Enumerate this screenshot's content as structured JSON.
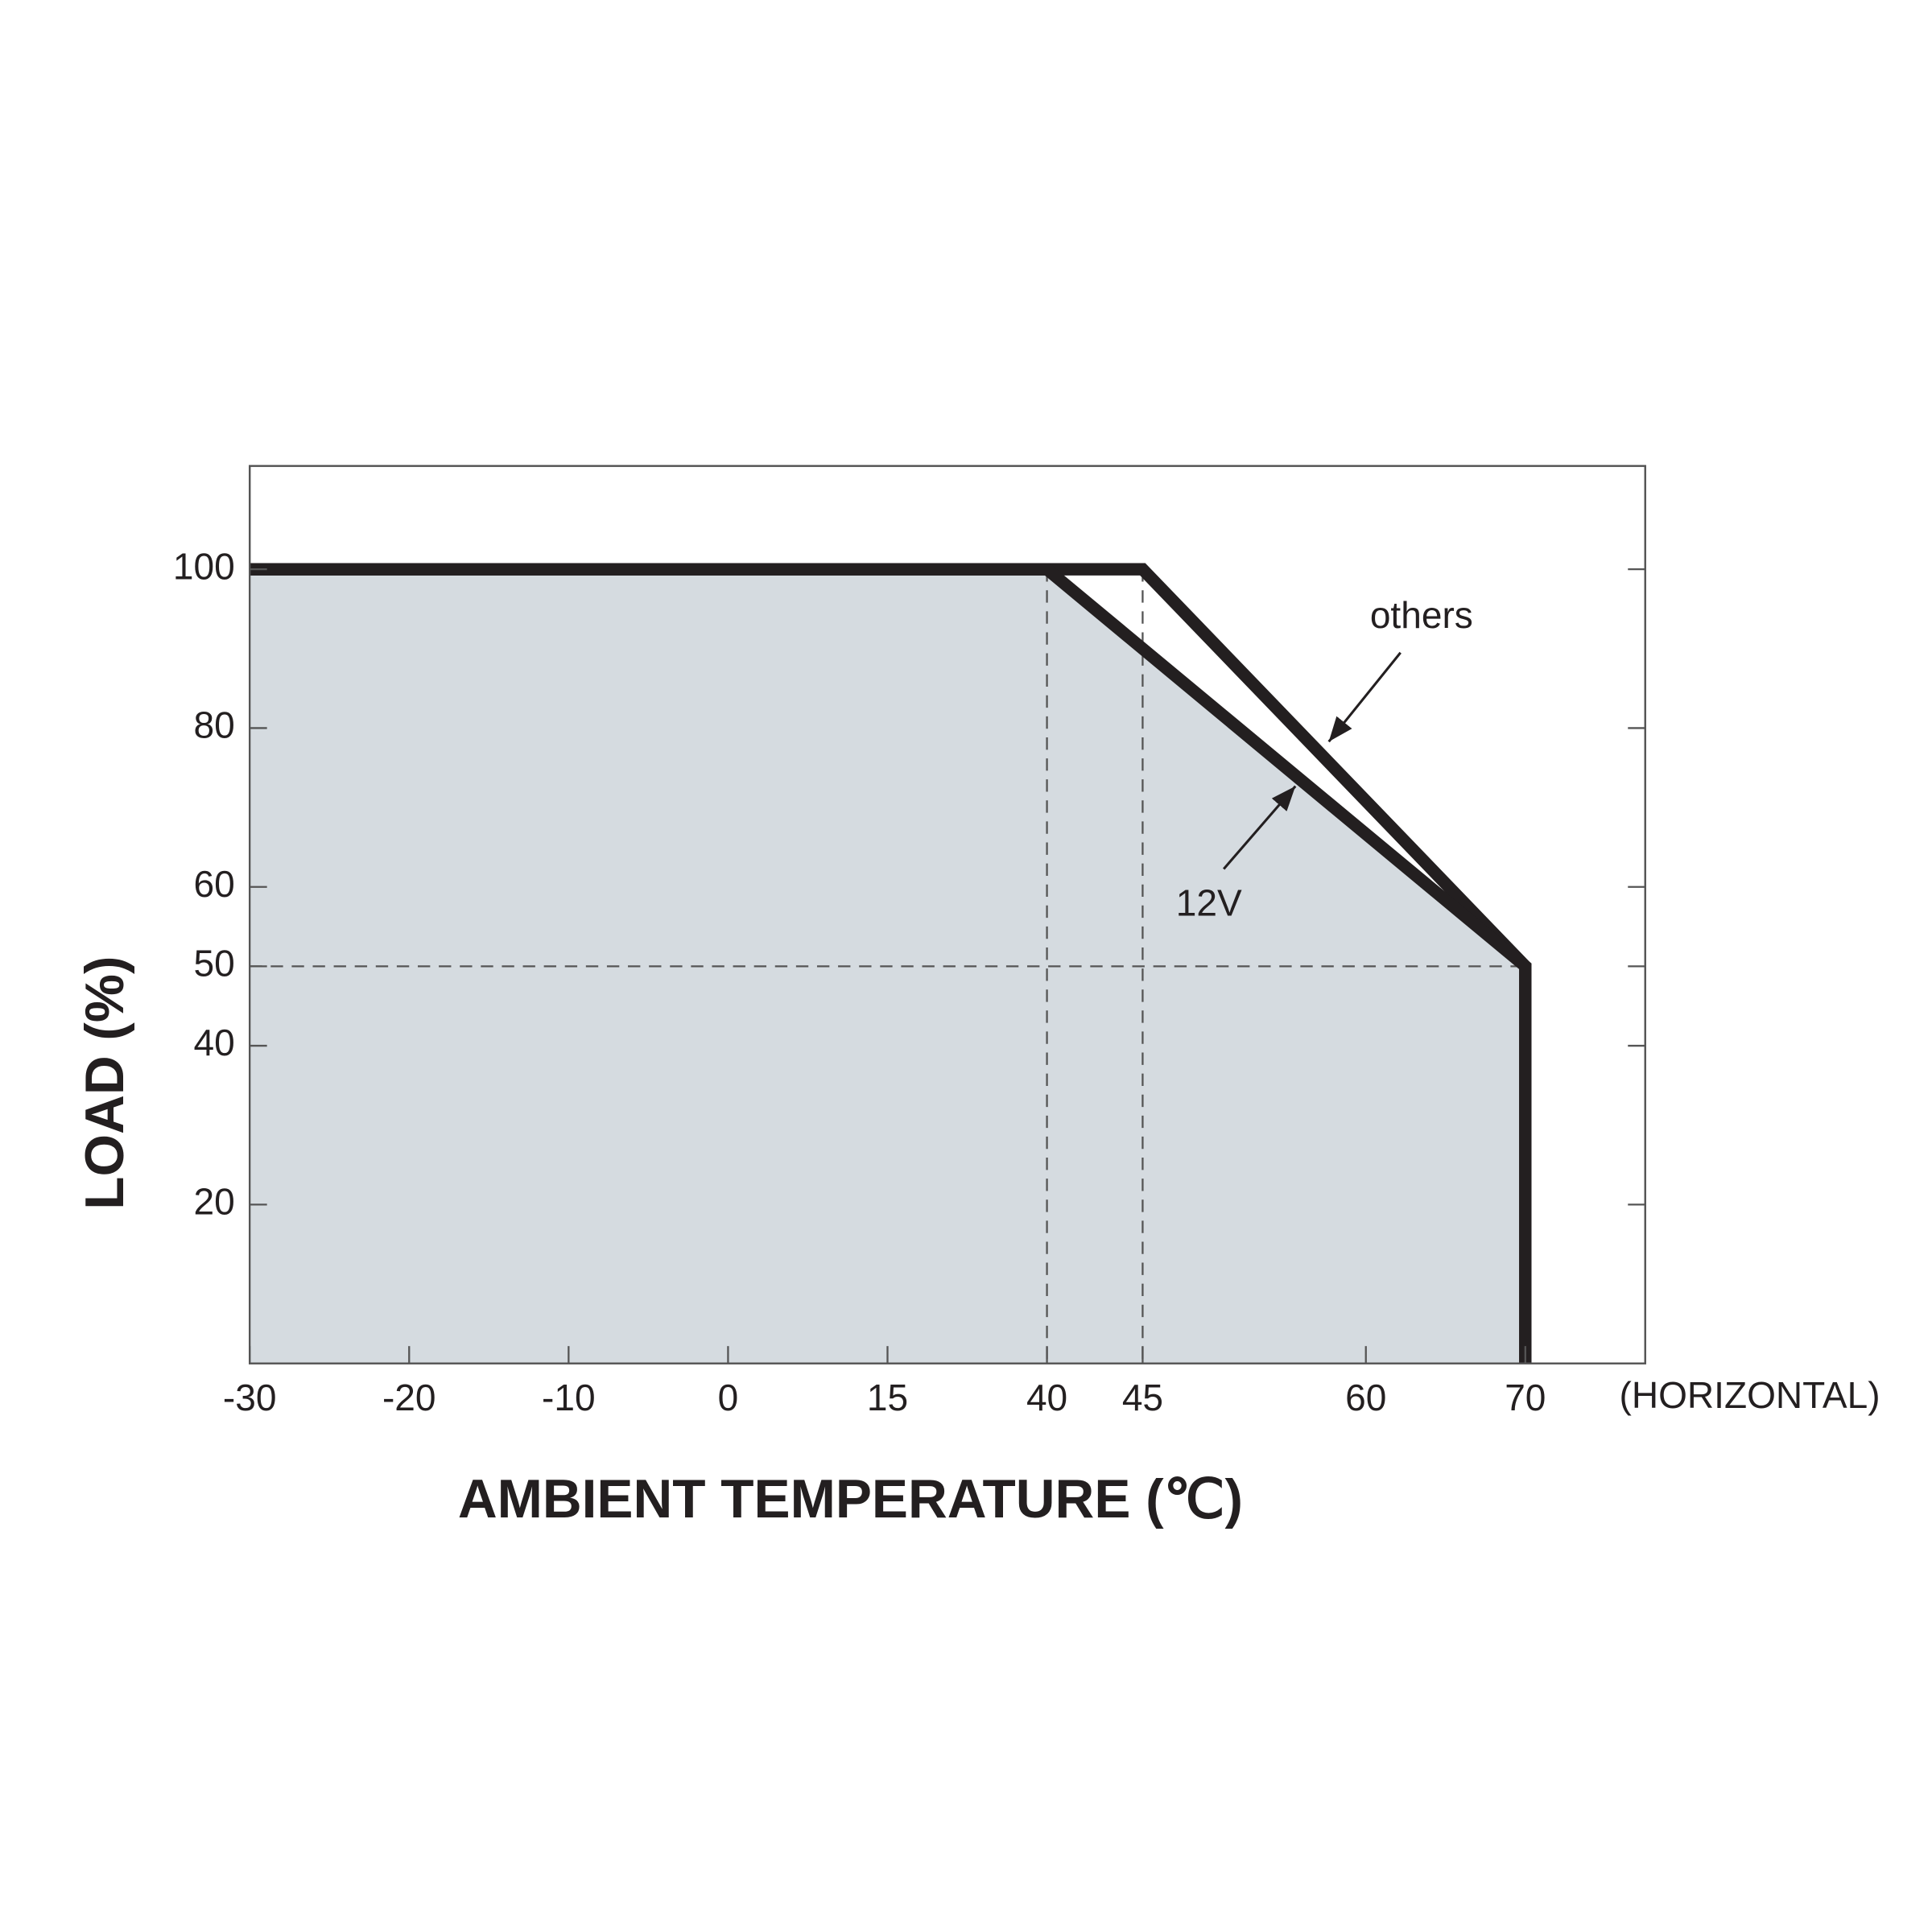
{
  "chart_data": {
    "type": "line",
    "x_label": "AMBIENT TEMPERATURE (℃)",
    "y_label": "LOAD (%)",
    "x_note": "(HORIZONTAL)",
    "xticks": [
      -30,
      -20,
      -10,
      0,
      15,
      40,
      45,
      60,
      70
    ],
    "ylim": [
      0,
      113
    ],
    "yticks": [
      20,
      40,
      50,
      60,
      80,
      100
    ],
    "series": [
      {
        "name": "others",
        "color": "#231f20",
        "x": [
          -30,
          45,
          70,
          70
        ],
        "values": [
          100,
          100,
          50,
          0
        ]
      },
      {
        "name": "12V",
        "color": "#231f20",
        "fill": "#d5dbe0",
        "x": [
          -30,
          40,
          70,
          70
        ],
        "values": [
          100,
          100,
          50,
          0
        ]
      }
    ]
  }
}
